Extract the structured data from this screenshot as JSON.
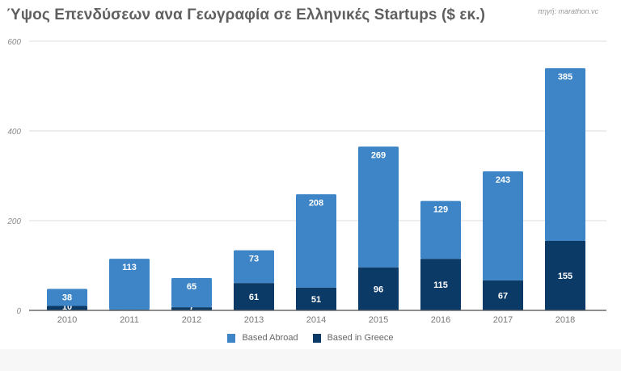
{
  "chart_data": {
    "type": "bar",
    "stacked": true,
    "title": "Ύψος Επενδύσεων ανα Γεωγραφία σε Ελληνικές Startups ($ εκ.)",
    "source": "πηγή: marathon.vc",
    "xlabel": "",
    "ylabel": "",
    "ylim": [
      0,
      600
    ],
    "yticks": [
      0,
      200,
      400,
      600
    ],
    "grid": true,
    "legend_position": "bottom",
    "categories": [
      "2010",
      "2011",
      "2012",
      "2013",
      "2014",
      "2015",
      "2016",
      "2017",
      "2018"
    ],
    "series": [
      {
        "name": "Based in Greece",
        "color": "#0b3a66",
        "values": [
          10,
          2,
          7,
          61,
          51,
          96,
          115,
          67,
          155
        ]
      },
      {
        "name": "Based Abroad",
        "color": "#3d85c6",
        "values": [
          38,
          113,
          65,
          73,
          208,
          269,
          129,
          243,
          385
        ]
      }
    ]
  },
  "legend": [
    {
      "label": "Based Abroad",
      "color": "#3d85c6"
    },
    {
      "label": "Based in Greece",
      "color": "#0b3a66"
    }
  ]
}
